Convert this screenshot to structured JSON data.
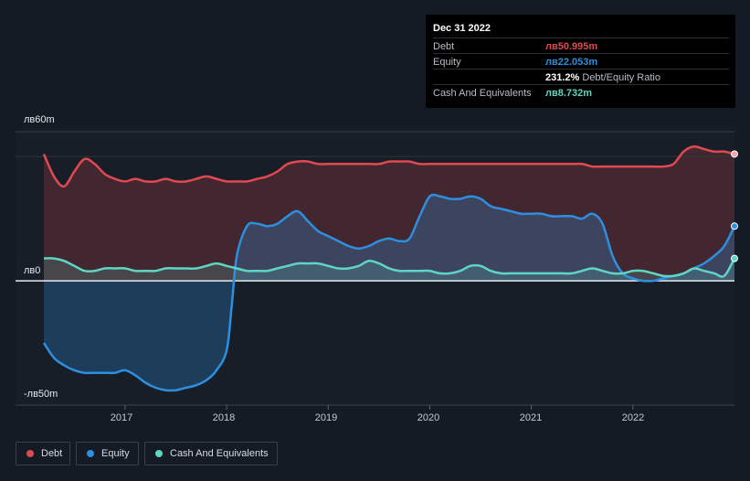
{
  "tooltip": {
    "date": "Dec 31 2022",
    "debt_label": "Debt",
    "debt_value": "лв50.995m",
    "equity_label": "Equity",
    "equity_value": "лв22.053m",
    "ratio_value": "231.2%",
    "ratio_label": "Debt/Equity Ratio",
    "cash_label": "Cash And Equivalents",
    "cash_value": "лв8.732m"
  },
  "legend": [
    {
      "label": "Debt",
      "color": "#e0494f"
    },
    {
      "label": "Equity",
      "color": "#2d8fe0"
    },
    {
      "label": "Cash And Equivalents",
      "color": "#5fd6c4"
    }
  ],
  "chart_data": {
    "type": "area",
    "y_tick_labels": [
      "лв60m",
      "лв0",
      "-лв50m"
    ],
    "x_tick_labels": [
      "2017",
      "2018",
      "2019",
      "2020",
      "2021",
      "2022"
    ],
    "ylim": [
      -50,
      60
    ],
    "xlim": [
      2016.2,
      2023.0
    ],
    "series": [
      {
        "name": "Debt",
        "color": "#e0494f",
        "x": [
          2016.2,
          2016.3,
          2016.4,
          2016.5,
          2016.6,
          2016.7,
          2016.8,
          2016.9,
          2017.0,
          2017.1,
          2017.2,
          2017.3,
          2017.4,
          2017.5,
          2017.6,
          2017.7,
          2017.8,
          2017.9,
          2018.0,
          2018.1,
          2018.2,
          2018.3,
          2018.4,
          2018.5,
          2018.6,
          2018.7,
          2018.8,
          2018.9,
          2019.0,
          2019.1,
          2019.2,
          2019.3,
          2019.4,
          2019.5,
          2019.6,
          2019.7,
          2019.8,
          2019.9,
          2020.0,
          2020.1,
          2020.2,
          2020.3,
          2020.4,
          2020.5,
          2020.6,
          2020.7,
          2020.8,
          2020.9,
          2021.0,
          2021.1,
          2021.2,
          2021.3,
          2021.4,
          2021.5,
          2021.6,
          2021.7,
          2021.8,
          2021.9,
          2022.0,
          2022.1,
          2022.2,
          2022.3,
          2022.4,
          2022.5,
          2022.6,
          2022.7,
          2022.8,
          2022.9,
          2023.0
        ],
        "values": [
          51,
          42,
          38,
          44,
          49,
          47,
          43,
          41,
          40,
          41,
          40,
          40,
          41,
          40,
          40,
          41,
          42,
          41,
          40,
          40,
          40,
          41,
          42,
          44,
          47,
          48,
          48,
          47,
          47,
          47,
          47,
          47,
          47,
          47,
          48,
          48,
          48,
          47,
          47,
          47,
          47,
          47,
          47,
          47,
          47,
          47,
          47,
          47,
          47,
          47,
          47,
          47,
          47,
          47,
          46,
          46,
          46,
          46,
          46,
          46,
          46,
          46,
          47,
          52,
          54,
          53,
          52,
          52,
          51
        ]
      },
      {
        "name": "Equity",
        "color": "#2d8fe0",
        "x": [
          2016.2,
          2016.3,
          2016.4,
          2016.5,
          2016.6,
          2016.7,
          2016.8,
          2016.9,
          2017.0,
          2017.1,
          2017.2,
          2017.3,
          2017.4,
          2017.5,
          2017.6,
          2017.7,
          2017.8,
          2017.9,
          2018.0,
          2018.05,
          2018.1,
          2018.2,
          2018.3,
          2018.4,
          2018.5,
          2018.6,
          2018.7,
          2018.8,
          2018.9,
          2019.0,
          2019.1,
          2019.2,
          2019.3,
          2019.4,
          2019.5,
          2019.6,
          2019.7,
          2019.8,
          2019.9,
          2020.0,
          2020.1,
          2020.2,
          2020.3,
          2020.4,
          2020.5,
          2020.6,
          2020.7,
          2020.8,
          2020.9,
          2021.0,
          2021.1,
          2021.2,
          2021.3,
          2021.4,
          2021.5,
          2021.6,
          2021.7,
          2021.8,
          2021.9,
          2022.0,
          2022.1,
          2022.2,
          2022.3,
          2022.4,
          2022.5,
          2022.6,
          2022.7,
          2022.8,
          2022.9,
          2023.0
        ],
        "values": [
          -25,
          -31,
          -34,
          -36,
          -37,
          -37,
          -37,
          -37,
          -36,
          -38,
          -41,
          -43,
          -44,
          -44,
          -43,
          -42,
          -40,
          -36,
          -28,
          -10,
          10,
          22,
          23,
          22,
          23,
          26,
          28,
          24,
          20,
          18,
          16,
          14,
          13,
          14,
          16,
          17,
          16,
          17,
          26,
          34,
          34,
          33,
          33,
          34,
          33,
          30,
          29,
          28,
          27,
          27,
          27,
          26,
          26,
          26,
          25,
          27,
          23,
          10,
          3,
          1,
          0,
          0,
          1,
          2,
          3,
          5,
          7,
          10,
          14,
          22
        ]
      },
      {
        "name": "Cash And Equivalents",
        "color": "#5fd6c4",
        "x": [
          2016.2,
          2016.3,
          2016.4,
          2016.5,
          2016.6,
          2016.7,
          2016.8,
          2016.9,
          2017.0,
          2017.1,
          2017.2,
          2017.3,
          2017.4,
          2017.5,
          2017.6,
          2017.7,
          2017.8,
          2017.9,
          2018.0,
          2018.1,
          2018.2,
          2018.3,
          2018.4,
          2018.5,
          2018.6,
          2018.7,
          2018.8,
          2018.9,
          2019.0,
          2019.1,
          2019.2,
          2019.3,
          2019.4,
          2019.5,
          2019.6,
          2019.7,
          2019.8,
          2019.9,
          2020.0,
          2020.1,
          2020.2,
          2020.3,
          2020.4,
          2020.5,
          2020.6,
          2020.7,
          2020.8,
          2020.9,
          2021.0,
          2021.1,
          2021.2,
          2021.3,
          2021.4,
          2021.5,
          2021.6,
          2021.7,
          2021.8,
          2021.9,
          2022.0,
          2022.1,
          2022.2,
          2022.3,
          2022.4,
          2022.5,
          2022.6,
          2022.7,
          2022.8,
          2022.9,
          2023.0
        ],
        "values": [
          9,
          9,
          8,
          6,
          4,
          4,
          5,
          5,
          5,
          4,
          4,
          4,
          5,
          5,
          5,
          5,
          6,
          7,
          6,
          5,
          4,
          4,
          4,
          5,
          6,
          7,
          7,
          7,
          6,
          5,
          5,
          6,
          8,
          7,
          5,
          4,
          4,
          4,
          4,
          3,
          3,
          4,
          6,
          6,
          4,
          3,
          3,
          3,
          3,
          3,
          3,
          3,
          3,
          4,
          5,
          4,
          3,
          3,
          4,
          4,
          3,
          2,
          2,
          3,
          5,
          4,
          3,
          2,
          9
        ]
      }
    ]
  }
}
